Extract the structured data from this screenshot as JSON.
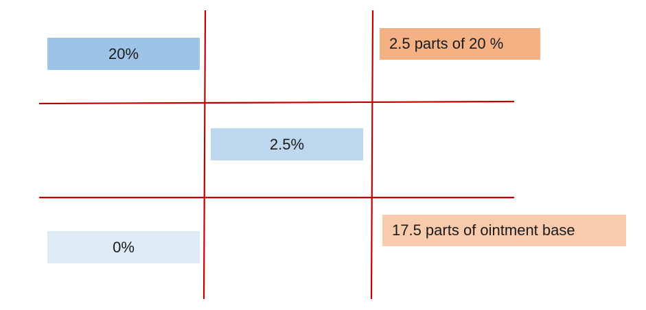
{
  "diagram": {
    "high_concentration": "20%",
    "target_concentration": "2.5%",
    "low_concentration": "0%",
    "parts_of_high": "2.5 parts of 20 %",
    "parts_of_low": "17.5 parts of ointment base"
  },
  "colors": {
    "line": "#c00000",
    "high_box": "#9dc3e6",
    "target_box": "#bdd7ee",
    "low_box": "#deebf7",
    "parts_high_box": "#f4b183",
    "parts_low_box": "#f8cbad"
  }
}
